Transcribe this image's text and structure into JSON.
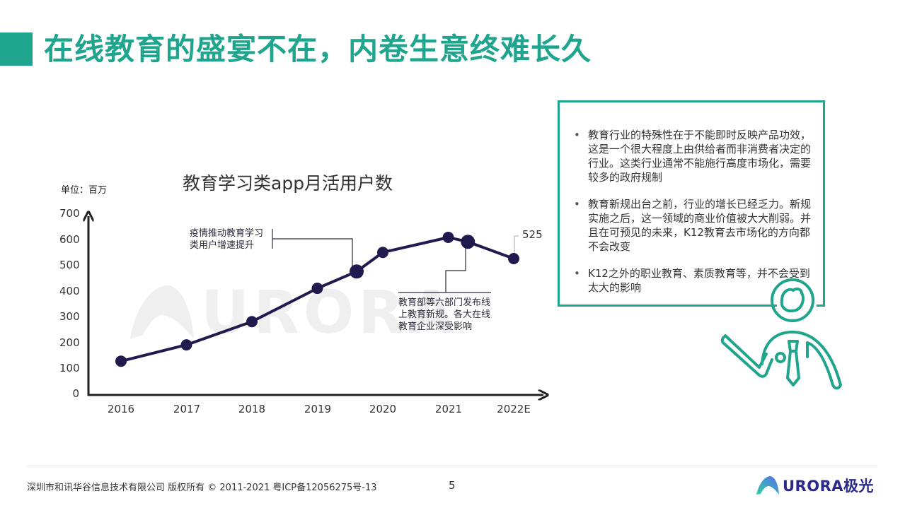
{
  "header": {
    "title": "在线教育的盛宴不在，内卷生意终难长久",
    "accent_color": "#1fa48e"
  },
  "chart_data": {
    "type": "line",
    "title": "教育学习类app月活用户数",
    "unit_label": "单位：百万",
    "xlabel": "",
    "ylabel": "单位：百万",
    "ylim": [
      0,
      700
    ],
    "yticks": [
      "0",
      "100",
      "200",
      "300",
      "400",
      "500",
      "600",
      "700"
    ],
    "categories": [
      "2016",
      "2017",
      "2018",
      "2019",
      "2020",
      "2021",
      "2022E"
    ],
    "points": [
      {
        "x": "2016",
        "value": 128
      },
      {
        "x": "2017",
        "value": 191
      },
      {
        "x": "2018",
        "value": 281
      },
      {
        "x": "2019",
        "value": 410
      },
      {
        "x": "2019.6",
        "value": 475,
        "highlight": true
      },
      {
        "x": "2020",
        "value": 549
      },
      {
        "x": "2021",
        "value": 607
      },
      {
        "x": "2021.3",
        "value": 590,
        "highlight": true
      },
      {
        "x": "2022E",
        "value": 525,
        "label": "525"
      }
    ],
    "series_color": "#211a4e",
    "grid": false,
    "annotations": [
      {
        "text": [
          "疫情推动教育学习",
          "类用户增速提升"
        ],
        "target": "2019.6"
      },
      {
        "text": [
          "教育部等六部门发布线",
          "上教育新规。各大在线",
          "教育企业深受影响"
        ],
        "target": "2021.3"
      }
    ],
    "data_label": "525"
  },
  "card": {
    "bullets": [
      "教育行业的特殊性在于不能即时反映产品功效，这是一个很大程度上由供给者而非消费者决定的行业。这类行业通常不能施行高度市场化，需要较多的政府规制",
      "教育新规出台之前，行业的增长已经乏力。新规实施之后，这一领域的商业价值被大大削弱。并且在可预见的未来，K12教育去市场化的方向都不会改变",
      "K12之外的职业教育、素质教育等，并不会受到太大的影响"
    ]
  },
  "watermark": {
    "text": "URORA"
  },
  "footer": {
    "copyright": "深圳市和讯华谷信息技术有限公司 版权所有 © 2011-2021 粤ICP备12056275号-13",
    "page_number": "5",
    "logo_text": "URORA极光"
  }
}
